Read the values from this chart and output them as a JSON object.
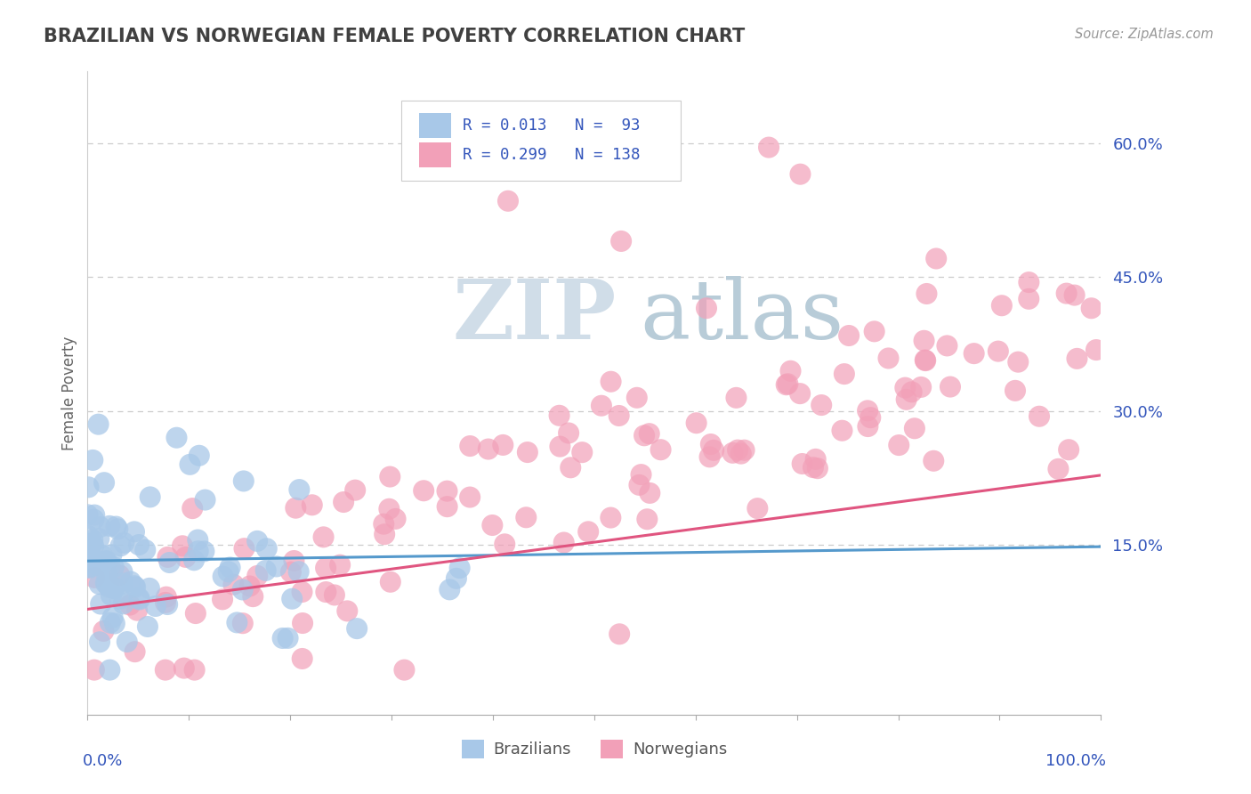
{
  "title": "BRAZILIAN VS NORWEGIAN FEMALE POVERTY CORRELATION CHART",
  "source": "Source: ZipAtlas.com",
  "ylabel": "Female Poverty",
  "ytick_values": [
    0.15,
    0.3,
    0.45,
    0.6
  ],
  "ytick_labels": [
    "15.0%",
    "30.0%",
    "45.0%",
    "60.0%"
  ],
  "xlim": [
    0.0,
    1.0
  ],
  "ylim": [
    -0.04,
    0.68
  ],
  "brazil_R": 0.013,
  "brazil_N": 93,
  "norway_R": 0.299,
  "norway_N": 138,
  "brazil_color": "#a8c8e8",
  "norway_color": "#f2a0b8",
  "brazil_line_color": "#5599cc",
  "norway_line_color": "#e05580",
  "legend_text_color": "#3355bb",
  "watermark_zip_color": "#d0dde8",
  "watermark_atlas_color": "#b8ccd8",
  "background_color": "#ffffff",
  "grid_color": "#cccccc",
  "title_color": "#404040",
  "axis_label_color": "#3355bb",
  "brazil_trend_y0": 0.132,
  "brazil_trend_y1": 0.148,
  "norway_trend_y0": 0.078,
  "norway_trend_y1": 0.228
}
